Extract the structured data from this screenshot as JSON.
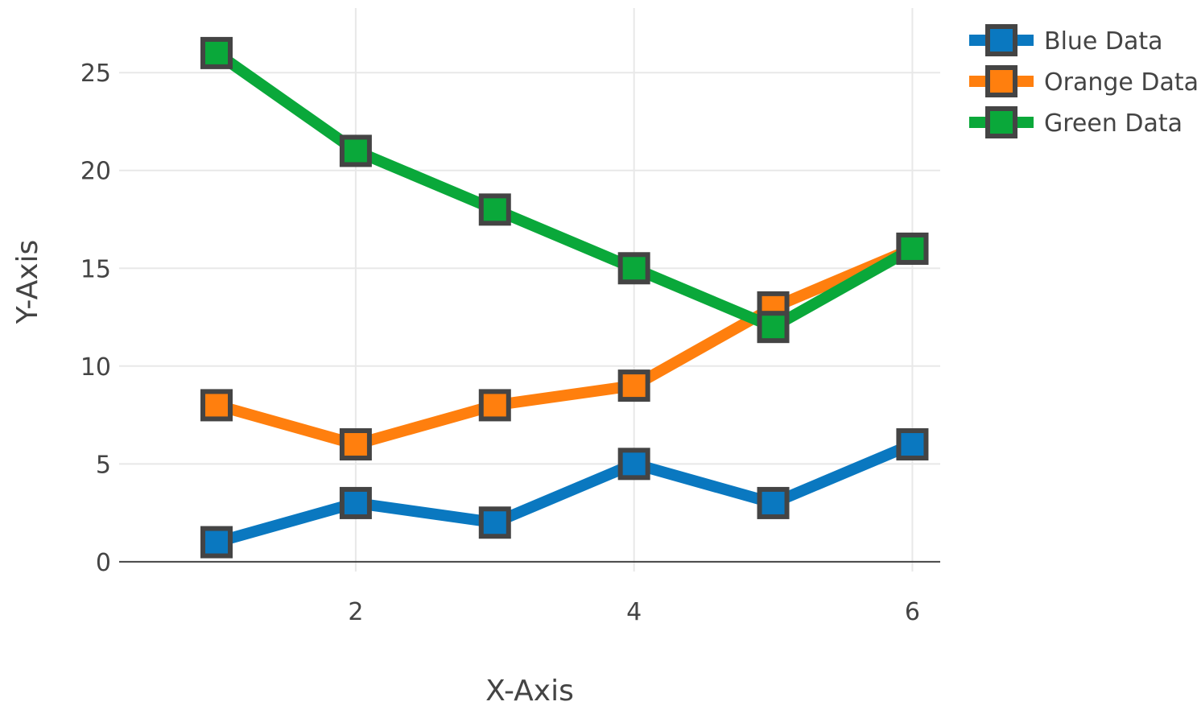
{
  "chart_data": {
    "type": "line",
    "title": "",
    "xlabel": "X-Axis",
    "ylabel": "Y-Axis",
    "x": [
      1,
      2,
      3,
      4,
      5,
      6
    ],
    "xlim": [
      0.3,
      6.2
    ],
    "ylim": [
      -0.5,
      28.3
    ],
    "xticks": [
      2,
      4,
      6
    ],
    "yticks": [
      0,
      5,
      10,
      15,
      20,
      25
    ],
    "grid": true,
    "legend_position": "top-right",
    "marker": "square",
    "marker_border_color": "#444444",
    "series": [
      {
        "name": "Blue Data",
        "color": "#0a78c0",
        "values": [
          1,
          3,
          2,
          5,
          3,
          6
        ]
      },
      {
        "name": "Orange Data",
        "color": "#ff7f0e",
        "values": [
          8,
          6,
          8,
          9,
          13,
          16
        ]
      },
      {
        "name": "Green Data",
        "color": "#0aa83a",
        "values": [
          26,
          21,
          18,
          15,
          12,
          16
        ]
      }
    ]
  }
}
